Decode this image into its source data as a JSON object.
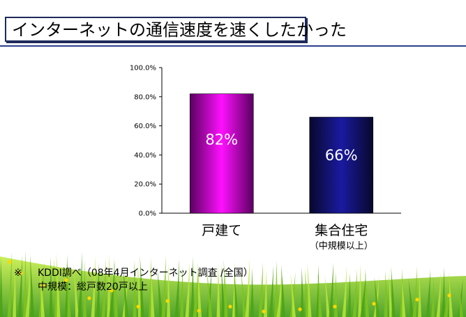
{
  "title": "インターネットの通信速度を速くしたかった",
  "colors": {
    "bar_1_gradient": [
      "#5a0060",
      "#ff10ff",
      "#5a0060"
    ],
    "bar_2_gradient": [
      "#08082e",
      "#1a1aa0",
      "#08082e"
    ],
    "title_border": "#1e2a5a",
    "underline": "#2b3f8c",
    "grass_light": "#b8e638",
    "grass_dark": "#4aa214",
    "flower": "#ffd800"
  },
  "chart_data": {
    "type": "bar",
    "categories": [
      "戸建て",
      "集合住宅"
    ],
    "category_sublabels": [
      "",
      "（中規模以上）"
    ],
    "values": [
      82,
      66
    ],
    "value_labels": [
      "82%",
      "66%"
    ],
    "yticks": [
      "0.0%",
      "20.0%",
      "40.0%",
      "60.0%",
      "80.0%",
      "100.0%"
    ],
    "ylim": [
      0,
      100
    ],
    "grid": false
  },
  "footnote": {
    "mark": "※",
    "line1": "KDDI調べ（08年4月インターネット調査 /全国）",
    "line2": "中規模：総戸数20戸以上"
  }
}
